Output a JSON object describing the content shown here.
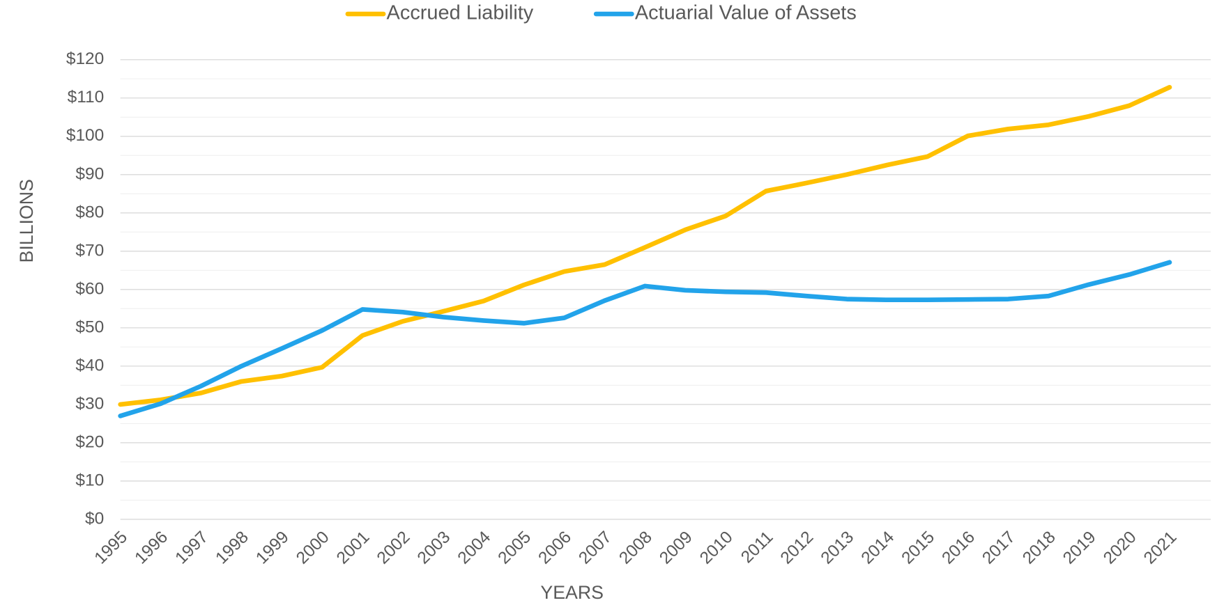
{
  "chart_data": {
    "type": "line",
    "x_label": "YEARS",
    "y_label": "BILLIONS",
    "categories": [
      "1995",
      "1996",
      "1997",
      "1998",
      "1999",
      "2000",
      "2001",
      "2002",
      "2003",
      "2004",
      "2005",
      "2006",
      "2007",
      "2008",
      "2009",
      "2010",
      "2011",
      "2012",
      "2013",
      "2014",
      "2015",
      "2016",
      "2017",
      "2018",
      "2019",
      "2020",
      "2021"
    ],
    "series": [
      {
        "name": "Accrued Liability",
        "color": "#ffc000",
        "values": [
          30,
          31.2,
          33,
          36,
          37.4,
          39.7,
          48,
          51.7,
          54.3,
          57,
          61.2,
          64.7,
          66.5,
          71,
          75.6,
          79.2,
          85.7,
          87.8,
          90,
          92.5,
          94.7,
          100.1,
          101.9,
          103,
          105.2,
          108,
          112.8
        ]
      },
      {
        "name": "Actuarial Value of Assets",
        "color": "#22a3ea",
        "values": [
          27,
          30.2,
          34.8,
          40,
          44.6,
          49.3,
          54.8,
          54.1,
          52.8,
          51.9,
          51.2,
          52.6,
          57.1,
          60.9,
          59.8,
          59.4,
          59.2,
          58.3,
          57.5,
          57.3,
          57.3,
          57.4,
          57.5,
          58.3,
          61.3,
          63.9,
          67.1
        ]
      }
    ],
    "ylim": [
      0,
      120
    ],
    "yticks": [
      {
        "value": 0,
        "label": "$0"
      },
      {
        "value": 10,
        "label": "$10"
      },
      {
        "value": 20,
        "label": "$20"
      },
      {
        "value": 30,
        "label": "$30"
      },
      {
        "value": 40,
        "label": "$40"
      },
      {
        "value": 50,
        "label": "$50"
      },
      {
        "value": 60,
        "label": "$60"
      },
      {
        "value": 70,
        "label": "$70"
      },
      {
        "value": 80,
        "label": "$80"
      },
      {
        "value": 90,
        "label": "$90"
      },
      {
        "value": 100,
        "label": "$100"
      },
      {
        "value": 110,
        "label": "$110"
      },
      {
        "value": 120,
        "label": "$120"
      }
    ],
    "grid": true,
    "minor_grid": true,
    "legend": "top"
  }
}
